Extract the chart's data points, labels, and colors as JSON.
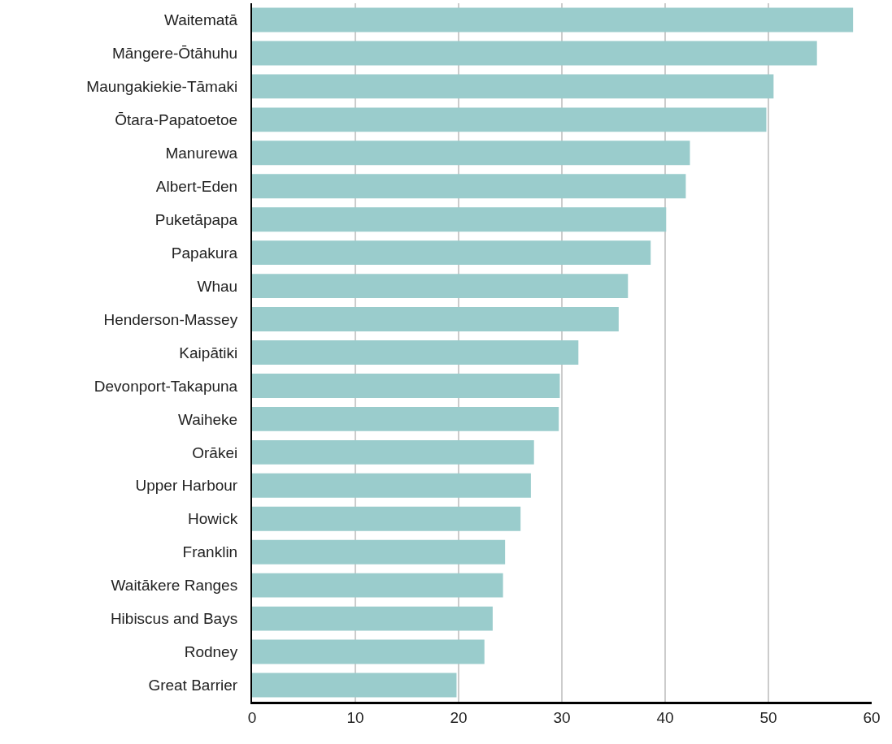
{
  "chart_data": {
    "type": "bar",
    "orientation": "horizontal",
    "categories": [
      "Waitematā",
      "Māngere-Ōtāhuhu",
      "Maungakiekie-Tāmaki",
      "Ōtara-Papatoetoe",
      "Manurewa",
      "Albert-Eden",
      "Puketāpapa",
      "Papakura",
      "Whau",
      "Henderson-Massey",
      "Kaipātiki",
      "Devonport-Takapuna",
      "Waiheke",
      "Orākei",
      "Upper Harbour",
      "Howick",
      "Franklin",
      "Waitākere Ranges",
      "Hibiscus and Bays",
      "Rodney",
      "Great Barrier"
    ],
    "values": [
      58.2,
      54.7,
      50.5,
      49.8,
      42.4,
      42.0,
      40.1,
      38.6,
      36.4,
      35.5,
      31.6,
      29.8,
      29.7,
      27.3,
      27.0,
      26.0,
      24.5,
      24.3,
      23.3,
      22.5,
      19.8
    ],
    "color": "#9acccc",
    "xlim": [
      0,
      60
    ],
    "xticks": [
      0,
      10,
      20,
      30,
      40,
      50,
      60
    ],
    "grid": "x"
  }
}
